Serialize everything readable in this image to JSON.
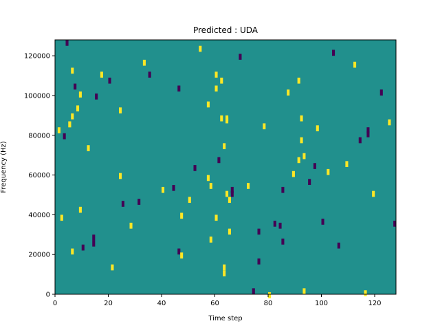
{
  "chart_data": {
    "type": "heatmap",
    "title": "Predicted : UDA",
    "xlabel": "Time step",
    "ylabel": "Frequency (Hz)",
    "xlim": [
      0,
      128
    ],
    "ylim": [
      0,
      128000
    ],
    "x_ticks": [
      0,
      20,
      40,
      60,
      80,
      100,
      120
    ],
    "y_ticks": [
      0,
      20000,
      40000,
      60000,
      80000,
      100000,
      120000
    ],
    "n_time_steps": 128,
    "n_freq_bins": 128,
    "background_value": 0,
    "colormap": "viridis",
    "colors": {
      "background": "#21908d",
      "low": "#440154",
      "high": "#fde725"
    },
    "cells": [
      [
        1,
        1,
        1
      ],
      [
        2,
        1,
        1
      ],
      [
        3,
        1,
        -1
      ],
      [
        4,
        1,
        -1
      ],
      [
        5,
        2,
        1
      ],
      [
        6,
        3,
        1
      ],
      [
        7,
        1,
        -1
      ],
      [
        8,
        1,
        1
      ],
      [
        9,
        2,
        1
      ],
      [
        10,
        1,
        -1
      ],
      [
        12,
        1,
        1
      ],
      [
        14,
        2,
        -1
      ],
      [
        15,
        1,
        -1
      ],
      [
        17,
        1,
        1
      ],
      [
        20,
        1,
        -1
      ],
      [
        21,
        1,
        1
      ],
      [
        24,
        2,
        1
      ],
      [
        25,
        1,
        -1
      ],
      [
        28,
        1,
        1
      ],
      [
        31,
        1,
        -1
      ],
      [
        33,
        1,
        1
      ],
      [
        35,
        1,
        -1
      ],
      [
        40,
        1,
        1
      ],
      [
        44,
        1,
        -1
      ],
      [
        46,
        2,
        -1
      ],
      [
        47,
        2,
        1
      ],
      [
        50,
        1,
        1
      ],
      [
        52,
        1,
        -1
      ],
      [
        54,
        1,
        1
      ],
      [
        57,
        2,
        1
      ],
      [
        58,
        2,
        1
      ],
      [
        60,
        3,
        1
      ],
      [
        61,
        1,
        -1
      ],
      [
        62,
        2,
        1
      ],
      [
        63,
        3,
        1
      ],
      [
        64,
        3,
        1
      ],
      [
        65,
        2,
        1
      ],
      [
        66,
        2,
        -1
      ],
      [
        69,
        1,
        -1
      ],
      [
        72,
        1,
        1
      ],
      [
        74,
        1,
        -1
      ],
      [
        76,
        2,
        -1
      ],
      [
        78,
        1,
        1
      ],
      [
        80,
        1,
        1
      ],
      [
        82,
        1,
        -1
      ],
      [
        84,
        1,
        -1
      ],
      [
        85,
        2,
        -1
      ],
      [
        87,
        1,
        1
      ],
      [
        89,
        1,
        1
      ],
      [
        91,
        2,
        1
      ],
      [
        92,
        2,
        1
      ],
      [
        93,
        2,
        1
      ],
      [
        95,
        1,
        -1
      ],
      [
        97,
        1,
        -1
      ],
      [
        98,
        1,
        1
      ],
      [
        100,
        1,
        -1
      ],
      [
        102,
        1,
        1
      ],
      [
        104,
        1,
        -1
      ],
      [
        106,
        1,
        -1
      ],
      [
        109,
        1,
        1
      ],
      [
        112,
        1,
        1
      ],
      [
        114,
        1,
        -1
      ],
      [
        116,
        1,
        1
      ],
      [
        117,
        2,
        -1
      ],
      [
        119,
        1,
        1
      ],
      [
        122,
        1,
        -1
      ],
      [
        125,
        1,
        1
      ],
      [
        127,
        1,
        -1
      ]
    ]
  }
}
